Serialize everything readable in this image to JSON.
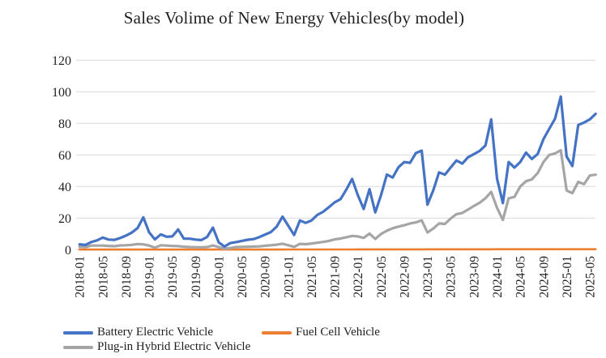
{
  "chart_data": {
    "type": "line",
    "title": "Sales Volime of New Energy Vehicles(by model)",
    "xlabel": "",
    "ylabel": "",
    "ylim": [
      0,
      120
    ],
    "y_ticks": [
      0,
      20,
      40,
      60,
      80,
      100,
      120
    ],
    "grid": true,
    "legend_position": "bottom",
    "x_tick_every": 4,
    "x_tick_labels": [
      "2018-01",
      "2018-05",
      "2018-09",
      "2019-01",
      "2019-05",
      "2019-09",
      "2020-01",
      "2020-05",
      "2020-09",
      "2021-01",
      "2021-05",
      "2021-09",
      "2022-01",
      "2022-05",
      "2022-09",
      "2023-01",
      "2023-05",
      "2023-09",
      "2024-01",
      "2024-05",
      "2024-09",
      "2025-01",
      "2025-05"
    ],
    "x": [
      "2018-01",
      "2018-02",
      "2018-03",
      "2018-04",
      "2018-05",
      "2018-06",
      "2018-07",
      "2018-08",
      "2018-09",
      "2018-10",
      "2018-11",
      "2018-12",
      "2019-01",
      "2019-02",
      "2019-03",
      "2019-04",
      "2019-05",
      "2019-06",
      "2019-07",
      "2019-08",
      "2019-09",
      "2019-10",
      "2019-11",
      "2019-12",
      "2020-01",
      "2020-02",
      "2020-03",
      "2020-04",
      "2020-05",
      "2020-06",
      "2020-07",
      "2020-08",
      "2020-09",
      "2020-10",
      "2020-11",
      "2020-12",
      "2021-01",
      "2021-02",
      "2021-03",
      "2021-04",
      "2021-05",
      "2021-06",
      "2021-07",
      "2021-08",
      "2021-09",
      "2021-10",
      "2021-11",
      "2021-12",
      "2022-01",
      "2022-02",
      "2022-03",
      "2022-04",
      "2022-05",
      "2022-06",
      "2022-07",
      "2022-08",
      "2022-09",
      "2022-10",
      "2022-11",
      "2022-12",
      "2023-01",
      "2023-02",
      "2023-03",
      "2023-04",
      "2023-05",
      "2023-06",
      "2023-07",
      "2023-08",
      "2023-09",
      "2023-10",
      "2023-11",
      "2023-12",
      "2024-01",
      "2024-02",
      "2024-03",
      "2024-04",
      "2024-05",
      "2024-06",
      "2024-07",
      "2024-08",
      "2024-09",
      "2024-10",
      "2024-11",
      "2024-12",
      "2025-01",
      "2025-02",
      "2025-03",
      "2025-04",
      "2025-05",
      "2025-06"
    ],
    "series": [
      {
        "name": "Battery Electric Vehicle",
        "color": "#4472C4",
        "values": [
          3.4,
          3.0,
          4.8,
          5.9,
          7.7,
          6.4,
          6.2,
          7.4,
          8.9,
          10.8,
          13.7,
          20.5,
          11.0,
          6.5,
          9.7,
          8.2,
          8.4,
          12.8,
          7.0,
          7.0,
          6.4,
          6.1,
          8.1,
          14.0,
          4.6,
          2.0,
          4.2,
          4.8,
          5.6,
          6.3,
          6.7,
          8.0,
          9.6,
          11.2,
          14.6,
          21.0,
          15.1,
          9.3,
          18.5,
          17.0,
          18.5,
          22.0,
          24.0,
          27.0,
          30.0,
          32.0,
          38.0,
          44.8,
          34.5,
          25.8,
          38.3,
          23.6,
          34.7,
          47.6,
          45.7,
          52.2,
          55.5,
          55.0,
          61.2,
          62.7,
          28.5,
          37.6,
          49.0,
          47.5,
          52.0,
          56.5,
          54.5,
          58.5,
          60.5,
          62.5,
          66.0,
          82.5,
          45.0,
          29.5,
          55.5,
          52.0,
          55.5,
          61.5,
          57.5,
          60.5,
          70.0,
          76.5,
          83.0,
          97.0,
          59.0,
          53.0,
          79.0,
          80.5,
          82.5,
          86.0
        ]
      },
      {
        "name": "Fuel Cell Vehicle",
        "color": "#ED7D31",
        "values": [
          0.1,
          0.1,
          0.1,
          0.1,
          0.1,
          0.1,
          0.1,
          0.1,
          0.1,
          0.1,
          0.1,
          0.1,
          0.1,
          0.1,
          0.1,
          0.1,
          0.1,
          0.1,
          0.1,
          0.1,
          0.1,
          0.1,
          0.1,
          0.1,
          0.1,
          0.1,
          0.1,
          0.1,
          0.1,
          0.1,
          0.1,
          0.1,
          0.1,
          0.1,
          0.1,
          0.1,
          0.15,
          0.15,
          0.15,
          0.15,
          0.15,
          0.15,
          0.15,
          0.15,
          0.15,
          0.15,
          0.15,
          0.15,
          0.2,
          0.2,
          0.2,
          0.2,
          0.2,
          0.2,
          0.2,
          0.2,
          0.2,
          0.2,
          0.2,
          0.2,
          0.25,
          0.25,
          0.25,
          0.25,
          0.25,
          0.25,
          0.25,
          0.25,
          0.25,
          0.25,
          0.25,
          0.25,
          0.3,
          0.3,
          0.3,
          0.3,
          0.3,
          0.3,
          0.3,
          0.3,
          0.3,
          0.3,
          0.3,
          0.3,
          0.3,
          0.3,
          0.3,
          0.3,
          0.3,
          0.3
        ]
      },
      {
        "name": "Plug-in Hybrid Electric Vehicle",
        "color": "#A5A5A5",
        "values": [
          1.9,
          1.6,
          2.6,
          2.6,
          2.6,
          2.4,
          2.2,
          2.7,
          2.8,
          3.1,
          3.6,
          3.4,
          2.6,
          1.3,
          2.8,
          2.6,
          2.4,
          2.3,
          1.9,
          1.7,
          1.6,
          1.5,
          1.7,
          2.7,
          1.6,
          0.6,
          1.1,
          1.7,
          1.8,
          1.9,
          2.0,
          2.1,
          2.5,
          2.8,
          3.2,
          3.8,
          2.8,
          1.8,
          3.7,
          3.5,
          3.9,
          4.4,
          4.9,
          5.6,
          6.5,
          7.1,
          7.9,
          8.7,
          8.4,
          7.5,
          10.2,
          6.8,
          10.0,
          12.0,
          13.6,
          14.6,
          15.5,
          16.6,
          17.3,
          18.6,
          10.9,
          13.4,
          16.6,
          16.3,
          19.7,
          22.5,
          23.3,
          25.4,
          27.7,
          29.7,
          32.6,
          36.6,
          26.5,
          18.8,
          32.5,
          33.5,
          40.0,
          43.4,
          44.5,
          48.5,
          55.5,
          60.0,
          61.0,
          63.0,
          37.5,
          35.8,
          43.0,
          41.5,
          47.0,
          47.5
        ]
      }
    ],
    "colors": {
      "gridline": "#D9D9D9",
      "tick_text": "#1f1f1f",
      "background": "#ffffff"
    }
  },
  "legend": {
    "items": [
      {
        "label": "Battery Electric Vehicle"
      },
      {
        "label": "Fuel Cell Vehicle"
      },
      {
        "label": "Plug-in Hybrid Electric Vehicle"
      }
    ]
  }
}
